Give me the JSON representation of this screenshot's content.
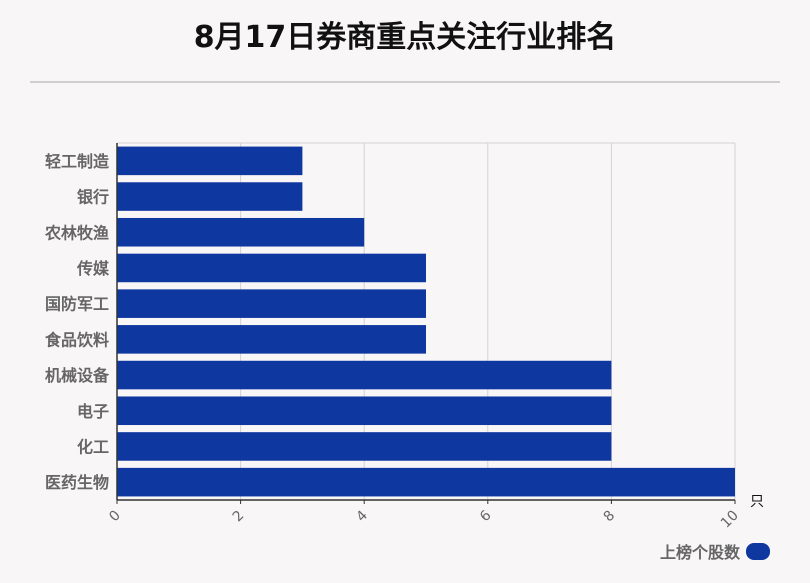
{
  "header": {
    "title": "8月17日券商重点关注行业排名"
  },
  "legend": {
    "label": "上榜个股数"
  },
  "colors": {
    "bar": "#0e37a0",
    "grid": "#d3d3d3",
    "axis": "#333333",
    "label": "#666666"
  },
  "chart_data": {
    "type": "bar",
    "orientation": "horizontal",
    "title": "8月17日券商重点关注行业排名",
    "categories": [
      "轻工制造",
      "银行",
      "农林牧渔",
      "传媒",
      "国防军工",
      "食品饮料",
      "机械设备",
      "电子",
      "化工",
      "医药生物"
    ],
    "series": [
      {
        "name": "上榜个股数",
        "values": [
          3,
          3,
          4,
          5,
          5,
          5,
          8,
          8,
          8,
          10
        ]
      }
    ],
    "xlim": [
      0,
      10
    ],
    "xticks": [
      0,
      2,
      4,
      6,
      8,
      10
    ],
    "xunit": "只",
    "grid": true,
    "legend_position": "bottom-right"
  }
}
